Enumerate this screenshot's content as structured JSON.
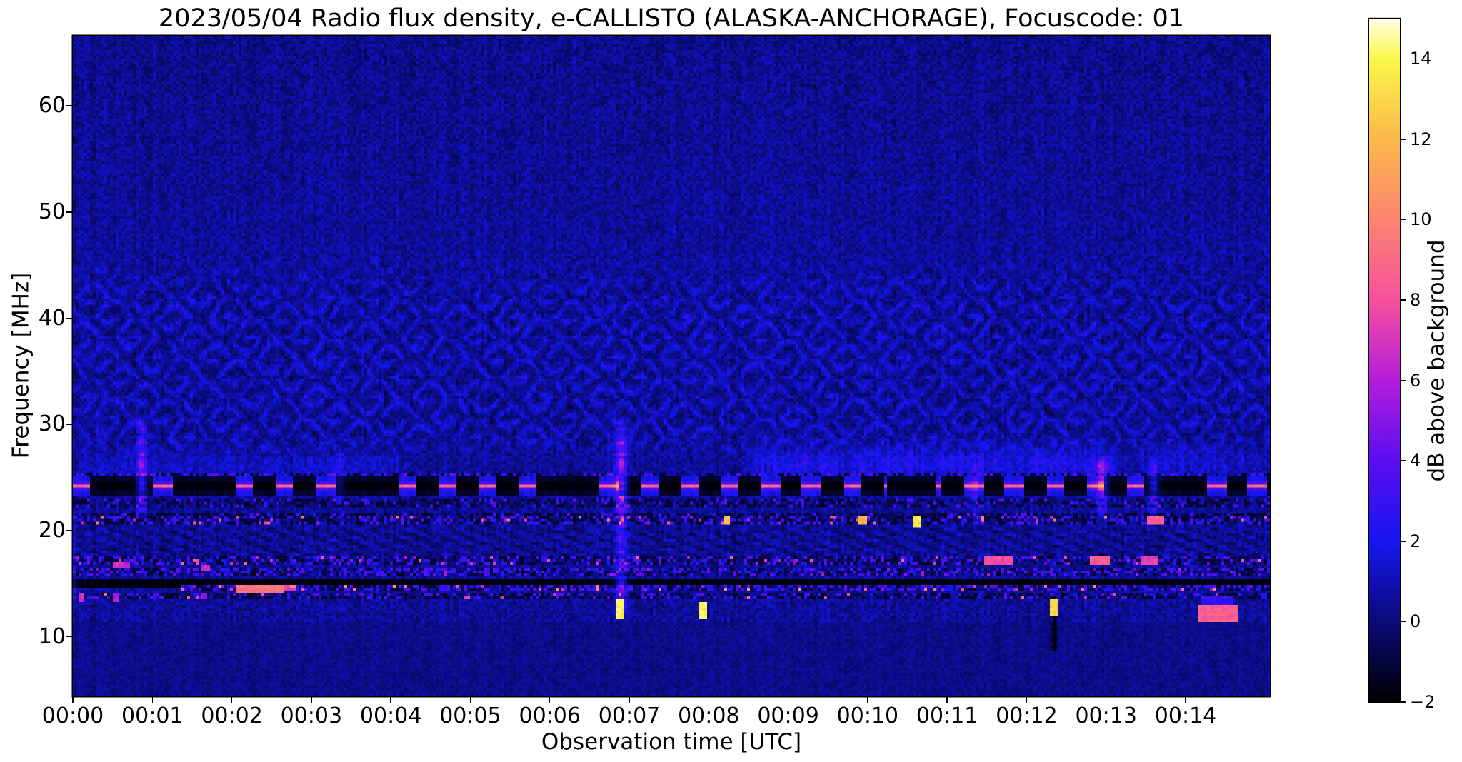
{
  "chart_data": {
    "type": "heatmap",
    "title": "2023/05/04  Radio flux density, e-CALLISTO (ALASKA-ANCHORAGE), Focuscode: 01",
    "xlabel": "Observation time [UTC]",
    "ylabel": "Frequency [MHz]",
    "colorbar_label": "dB above background",
    "x_ticks": [
      "00:00",
      "00:01",
      "00:02",
      "00:03",
      "00:04",
      "00:05",
      "00:06",
      "00:07",
      "00:08",
      "00:09",
      "00:10",
      "00:11",
      "00:12",
      "00:13",
      "00:14"
    ],
    "x_range_minutes": [
      0,
      15.06
    ],
    "y_ticks": [
      10,
      20,
      30,
      40,
      50,
      60
    ],
    "ylim": [
      4.4,
      66.6
    ],
    "grid": false,
    "legend": "none",
    "colorbar_ticks": [
      14,
      12,
      10,
      8,
      6,
      4,
      2,
      0,
      -2
    ],
    "clim": [
      -2,
      15
    ],
    "colormap_stops": [
      {
        "v": -2,
        "color": "#000000"
      },
      {
        "v": 0,
        "color": "#0a0a78"
      },
      {
        "v": 2,
        "color": "#1616f0"
      },
      {
        "v": 4,
        "color": "#5a0df0"
      },
      {
        "v": 6,
        "color": "#b41ddb"
      },
      {
        "v": 8,
        "color": "#f6509c"
      },
      {
        "v": 10,
        "color": "#fc8570"
      },
      {
        "v": 12,
        "color": "#fbb84b"
      },
      {
        "v": 14,
        "color": "#faf84a"
      },
      {
        "v": 15,
        "color": "#ffffe8"
      }
    ],
    "noise": {
      "base": 0.55,
      "spread": 1.5,
      "col_streak": 0.5,
      "upper_dim_f": 48,
      "upper_dim": -0.22,
      "seed": 7
    },
    "ripples": {
      "f_min": 26.5,
      "f_max": 47.5,
      "spacing": 1.9,
      "amp": 1.25,
      "period": 0.72,
      "strength": 1.15,
      "dark": 0.5
    },
    "haze": [
      {
        "f": 26.2,
        "sigma": 1.1,
        "t0": 8.4,
        "t1": 13.3,
        "s": 1.5
      },
      {
        "f": 26.0,
        "sigma": 0.9,
        "t0": 0.0,
        "t1": 4.3,
        "s": 0.8
      },
      {
        "f": 26.3,
        "sigma": 1.0,
        "t0": 13.3,
        "t1": 15.06,
        "s": 1.0
      }
    ],
    "dashed_line": {
      "f": 24.15,
      "core_half": 0.16,
      "halo_half": 0.4,
      "border_half": 0.95,
      "dash": 0.23,
      "gap": 0.28,
      "core_db": 8.8,
      "halo_db": 3.6,
      "on_border_db": 2.0,
      "off_db": -1.8,
      "skip_prob": 0.12,
      "forced_gaps": [
        [
          10.25,
          10.85
        ],
        [
          13.78,
          14.05
        ]
      ]
    },
    "black_line": {
      "f": 15.05,
      "half": 0.26,
      "db": -1.9,
      "wide_until_t": 1.35,
      "wide_mul": 1.8
    },
    "speckle_bands": [
      {
        "f": 20.9,
        "half": 0.4,
        "t0": 0,
        "p_dark": 0.3,
        "p_mid": 0.22,
        "p_bright": 0.05,
        "lo": 5,
        "hi": 10
      },
      {
        "f": 17.15,
        "half": 0.33,
        "t0": 0,
        "p_dark": 0.28,
        "p_mid": 0.25,
        "p_bright": 0.045,
        "lo": 4,
        "hi": 9
      },
      {
        "f": 16.1,
        "half": 0.35,
        "t0": 0,
        "p_dark": 0.22,
        "p_mid": 0.3,
        "p_bright": 0.02,
        "lo": 3.5,
        "hi": 6
      },
      {
        "f": 14.55,
        "half": 0.25,
        "t0": 1.35,
        "p_dark": 0.2,
        "p_mid": 0.35,
        "p_bright": 0.06,
        "lo": 5,
        "hi": 11
      },
      {
        "f": 13.75,
        "half": 0.22,
        "t0": 0,
        "p_dark": 0.35,
        "p_mid": 0.18,
        "p_bright": 0.015,
        "lo": 6,
        "hi": 9
      },
      {
        "f": 21.5,
        "half": 0.25,
        "t0": 0,
        "p_dark": 0.5,
        "p_mid": 0.1,
        "p_bright": 0.0,
        "lo": 3,
        "hi": 4
      },
      {
        "f": 22.6,
        "half": 0.5,
        "t0": 0,
        "p_dark": 0.35,
        "p_mid": 0.12,
        "p_bright": 0.005,
        "lo": 3,
        "hi": 5
      },
      {
        "f": 25.1,
        "half": 0.3,
        "t0": 0,
        "p_dark": 0.25,
        "p_mid": 0.3,
        "p_bright": 0.01,
        "lo": 3,
        "hi": 5
      }
    ],
    "hatch": {
      "f_min": 17.6,
      "f_max": 20.3,
      "s": 0.5,
      "tf": 3.1,
      "ff": 1.05
    },
    "v_streaks": [
      {
        "t": 0.02,
        "f0": 13.0,
        "f1": 22.0,
        "s": 1.5,
        "w": 0.02
      },
      {
        "t": 0.87,
        "f0": 21.0,
        "f1": 31.0,
        "s": 2.6,
        "w": 0.045
      },
      {
        "t": 3.35,
        "f0": 21.5,
        "f1": 27.5,
        "s": 0.9,
        "w": 0.04
      },
      {
        "t": 6.9,
        "f0": 11.8,
        "f1": 30.5,
        "s": 3.6,
        "w": 0.05
      },
      {
        "t": 11.35,
        "f0": 20.5,
        "f1": 26.5,
        "s": 1.3,
        "w": 0.04
      },
      {
        "t": 12.95,
        "f0": 20.5,
        "f1": 27.0,
        "s": 2.4,
        "w": 0.05
      },
      {
        "t": 13.6,
        "f0": 21.0,
        "f1": 26.8,
        "s": 1.9,
        "w": 0.045
      }
    ],
    "dark_vlines": [
      {
        "t": 12.35,
        "f0": 8.8,
        "f1": 14.2,
        "s": 2.0,
        "w": 0.03
      }
    ],
    "bright_marks": [
      {
        "t": 6.88,
        "f": 12.55,
        "v": 14.5,
        "w": 0.055,
        "h": 0.95
      },
      {
        "t": 7.92,
        "f": 12.5,
        "v": 14.5,
        "w": 0.055,
        "h": 0.9
      },
      {
        "t": 12.35,
        "f": 12.7,
        "v": 13.5,
        "w": 0.05,
        "h": 0.8
      },
      {
        "t": 10.62,
        "f": 20.9,
        "v": 14.0,
        "w": 0.05,
        "h": 0.5
      },
      {
        "t": 8.23,
        "f": 20.9,
        "v": 13.0,
        "w": 0.05,
        "h": 0.45
      },
      {
        "t": 9.93,
        "f": 20.95,
        "v": 12.5,
        "w": 0.05,
        "h": 0.45
      },
      {
        "t": 11.65,
        "f": 17.15,
        "v": 8.5,
        "w": 0.17,
        "h": 0.4
      },
      {
        "t": 12.92,
        "f": 17.2,
        "v": 9.0,
        "w": 0.14,
        "h": 0.4
      },
      {
        "t": 13.55,
        "f": 17.2,
        "v": 8.0,
        "w": 0.12,
        "h": 0.4
      },
      {
        "t": 13.62,
        "f": 20.9,
        "v": 9.0,
        "w": 0.1,
        "h": 0.4
      },
      {
        "t": 2.35,
        "f": 14.5,
        "v": 10.0,
        "w": 0.3,
        "h": 0.35
      },
      {
        "t": 2.6,
        "f": 14.55,
        "v": 8.0,
        "w": 0.2,
        "h": 0.3
      },
      {
        "t": 0.57,
        "f": 16.8,
        "v": 7.5,
        "w": 0.07,
        "h": 0.35
      },
      {
        "t": 0.67,
        "f": 16.75,
        "v": 6.5,
        "w": 0.05,
        "h": 0.3
      },
      {
        "t": 1.66,
        "f": 16.6,
        "v": 7.0,
        "w": 0.05,
        "h": 0.3
      },
      {
        "t": 0.1,
        "f": 13.75,
        "v": 7.5,
        "w": 0.04,
        "h": 0.4
      },
      {
        "t": 0.55,
        "f": 13.7,
        "v": 6.5,
        "w": 0.04,
        "h": 0.35
      },
      {
        "t": 1.65,
        "f": 13.75,
        "v": 6.0,
        "w": 0.04,
        "h": 0.3
      },
      {
        "t": 14.42,
        "f": 12.15,
        "v": 9.2,
        "w": 0.26,
        "h": 0.8
      },
      {
        "t": 14.38,
        "f": 13.1,
        "v": 3.2,
        "w": 0.2,
        "h": 0.6
      }
    ],
    "bottom_calm": {
      "f_below": 11.3,
      "mul": 0.6,
      "off": -0.05
    }
  }
}
